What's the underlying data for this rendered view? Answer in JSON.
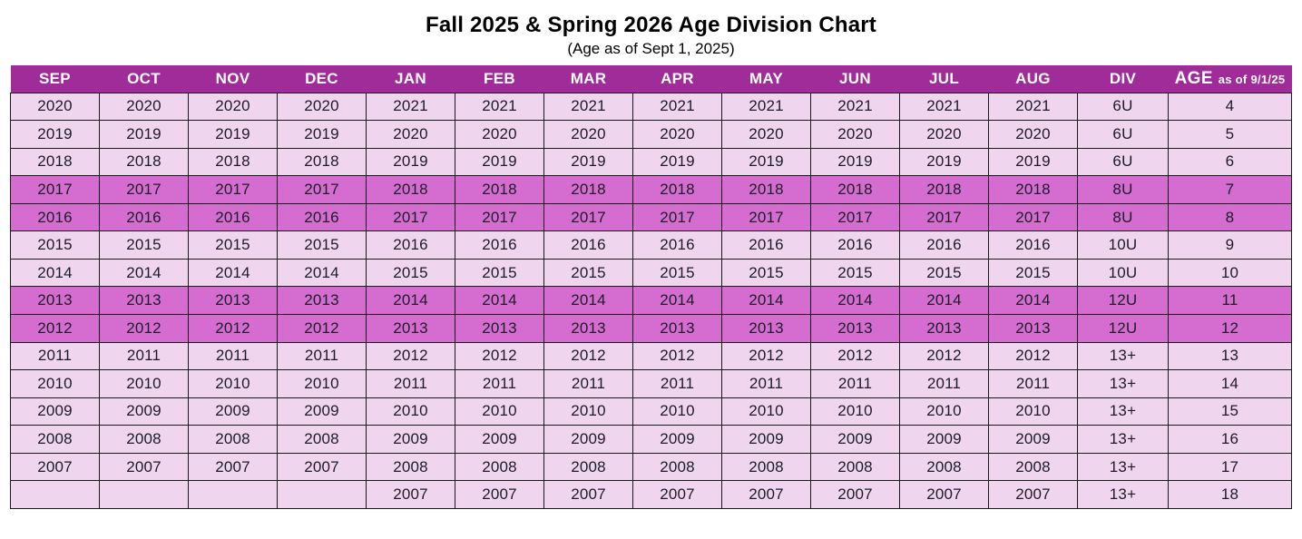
{
  "title": "Fall 2025 & Spring 2026 Age Division Chart",
  "subtitle": "(Age as of Sept 1, 2025)",
  "colors": {
    "header_bg": "#A02C9A",
    "medium_row_bg": "#D56CCF",
    "light_row_bg": "#F0D5EE",
    "border": "#1a1a1a",
    "header_text": "#ffffff",
    "cell_text": "#1c1c28"
  },
  "table": {
    "month_columns": [
      "SEP",
      "OCT",
      "NOV",
      "DEC",
      "JAN",
      "FEB",
      "MAR",
      "APR",
      "MAY",
      "JUN",
      "JUL",
      "AUG"
    ],
    "div_column": "DIV",
    "age_column": {
      "label": "AGE",
      "sublabel": "as of 9/1/25"
    },
    "rows": [
      {
        "months": [
          "2020",
          "2020",
          "2020",
          "2020",
          "2021",
          "2021",
          "2021",
          "2021",
          "2021",
          "2021",
          "2021",
          "2021"
        ],
        "div": "6U",
        "age": "4",
        "shade": "light"
      },
      {
        "months": [
          "2019",
          "2019",
          "2019",
          "2019",
          "2020",
          "2020",
          "2020",
          "2020",
          "2020",
          "2020",
          "2020",
          "2020"
        ],
        "div": "6U",
        "age": "5",
        "shade": "light"
      },
      {
        "months": [
          "2018",
          "2018",
          "2018",
          "2018",
          "2019",
          "2019",
          "2019",
          "2019",
          "2019",
          "2019",
          "2019",
          "2019"
        ],
        "div": "6U",
        "age": "6",
        "shade": "light"
      },
      {
        "months": [
          "2017",
          "2017",
          "2017",
          "2017",
          "2018",
          "2018",
          "2018",
          "2018",
          "2018",
          "2018",
          "2018",
          "2018"
        ],
        "div": "8U",
        "age": "7",
        "shade": "medium"
      },
      {
        "months": [
          "2016",
          "2016",
          "2016",
          "2016",
          "2017",
          "2017",
          "2017",
          "2017",
          "2017",
          "2017",
          "2017",
          "2017"
        ],
        "div": "8U",
        "age": "8",
        "shade": "medium"
      },
      {
        "months": [
          "2015",
          "2015",
          "2015",
          "2015",
          "2016",
          "2016",
          "2016",
          "2016",
          "2016",
          "2016",
          "2016",
          "2016"
        ],
        "div": "10U",
        "age": "9",
        "shade": "light"
      },
      {
        "months": [
          "2014",
          "2014",
          "2014",
          "2014",
          "2015",
          "2015",
          "2015",
          "2015",
          "2015",
          "2015",
          "2015",
          "2015"
        ],
        "div": "10U",
        "age": "10",
        "shade": "light"
      },
      {
        "months": [
          "2013",
          "2013",
          "2013",
          "2013",
          "2014",
          "2014",
          "2014",
          "2014",
          "2014",
          "2014",
          "2014",
          "2014"
        ],
        "div": "12U",
        "age": "11",
        "shade": "medium"
      },
      {
        "months": [
          "2012",
          "2012",
          "2012",
          "2012",
          "2013",
          "2013",
          "2013",
          "2013",
          "2013",
          "2013",
          "2013",
          "2013"
        ],
        "div": "12U",
        "age": "12",
        "shade": "medium"
      },
      {
        "months": [
          "2011",
          "2011",
          "2011",
          "2011",
          "2012",
          "2012",
          "2012",
          "2012",
          "2012",
          "2012",
          "2012",
          "2012"
        ],
        "div": "13+",
        "age": "13",
        "shade": "light"
      },
      {
        "months": [
          "2010",
          "2010",
          "2010",
          "2010",
          "2011",
          "2011",
          "2011",
          "2011",
          "2011",
          "2011",
          "2011",
          "2011"
        ],
        "div": "13+",
        "age": "14",
        "shade": "light"
      },
      {
        "months": [
          "2009",
          "2009",
          "2009",
          "2009",
          "2010",
          "2010",
          "2010",
          "2010",
          "2010",
          "2010",
          "2010",
          "2010"
        ],
        "div": "13+",
        "age": "15",
        "shade": "light"
      },
      {
        "months": [
          "2008",
          "2008",
          "2008",
          "2008",
          "2009",
          "2009",
          "2009",
          "2009",
          "2009",
          "2009",
          "2009",
          "2009"
        ],
        "div": "13+",
        "age": "16",
        "shade": "light"
      },
      {
        "months": [
          "2007",
          "2007",
          "2007",
          "2007",
          "2008",
          "2008",
          "2008",
          "2008",
          "2008",
          "2008",
          "2008",
          "2008"
        ],
        "div": "13+",
        "age": "17",
        "shade": "light"
      },
      {
        "months": [
          "",
          "",
          "",
          "",
          "2007",
          "2007",
          "2007",
          "2007",
          "2007",
          "2007",
          "2007",
          "2007"
        ],
        "div": "13+",
        "age": "18",
        "shade": "light"
      }
    ]
  }
}
